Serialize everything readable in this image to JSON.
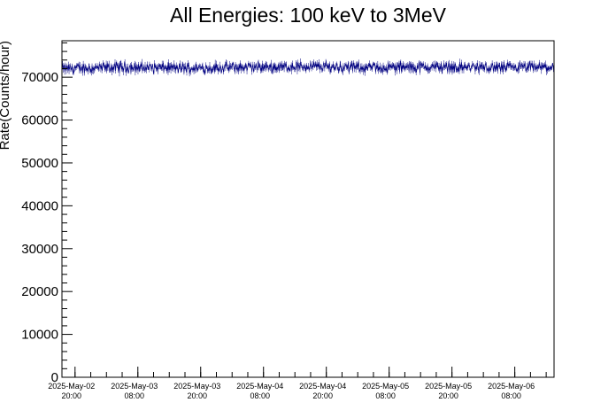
{
  "chart_data": {
    "type": "line",
    "title": "All Energies:  100 keV to 3MeV",
    "xlabel": "",
    "ylabel": "Rate(Counts/hour)",
    "ylim": [
      0,
      78500
    ],
    "yticks": [
      0,
      10000,
      20000,
      30000,
      40000,
      50000,
      60000,
      70000
    ],
    "y_minor_step": 2000,
    "xlim_hours": [
      0,
      94
    ],
    "x_tick_start_hour": 2.5,
    "x_tick_step_hours": 12,
    "x_minor_step_hours": 3,
    "x_tick_labels": [
      {
        "date": "2025-May-02",
        "time": "20:00"
      },
      {
        "date": "2025-May-03",
        "time": "08:00"
      },
      {
        "date": "2025-May-03",
        "time": "20:00"
      },
      {
        "date": "2025-May-04",
        "time": "08:00"
      },
      {
        "date": "2025-May-04",
        "time": "20:00"
      },
      {
        "date": "2025-May-05",
        "time": "08:00"
      },
      {
        "date": "2025-May-05",
        "time": "20:00"
      },
      {
        "date": "2025-May-06",
        "time": "08:00"
      }
    ],
    "series": [
      {
        "color": "#000080",
        "mean": 72200,
        "min": 69500,
        "max": 74700,
        "profile": [
          {
            "hour": 0,
            "value": 72000
          },
          {
            "hour": 12,
            "value": 72300
          },
          {
            "hour": 24,
            "value": 72100
          },
          {
            "hour": 36,
            "value": 72300
          },
          {
            "hour": 48,
            "value": 72500
          },
          {
            "hour": 60,
            "value": 72200
          },
          {
            "hour": 72,
            "value": 72400
          },
          {
            "hour": 84,
            "value": 72200
          },
          {
            "hour": 94,
            "value": 72300
          }
        ],
        "noise_amplitude": 1400,
        "n_points": 900
      }
    ],
    "grid": false,
    "legend": "none"
  }
}
